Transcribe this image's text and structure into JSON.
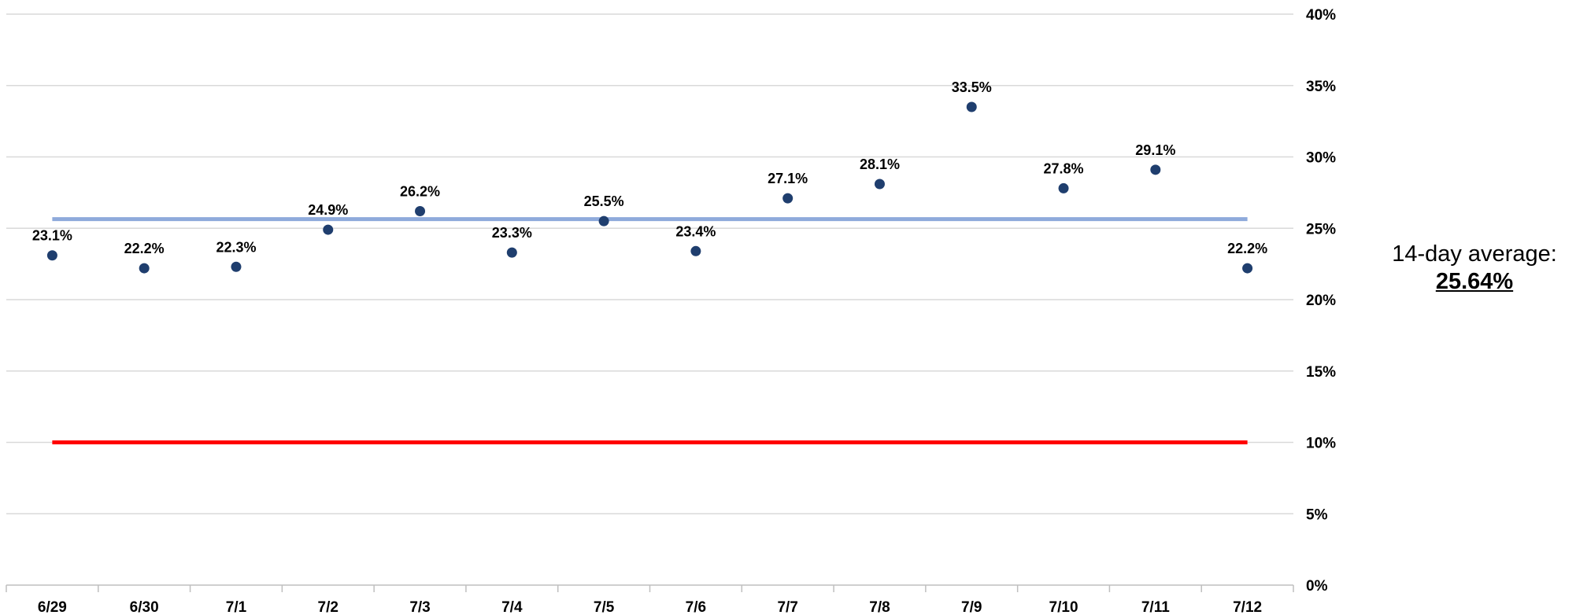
{
  "average": {
    "label": "14-day average:",
    "value": "25.64%"
  },
  "chart_data": {
    "type": "scatter",
    "title": "",
    "xlabel": "",
    "ylabel": "",
    "categories": [
      "6/29",
      "6/30",
      "7/1",
      "7/2",
      "7/3",
      "7/4",
      "7/5",
      "7/6",
      "7/7",
      "7/8",
      "7/9",
      "7/10",
      "7/11",
      "7/12"
    ],
    "series": [
      {
        "values": [
          23.1,
          22.2,
          22.3,
          24.9,
          26.2,
          23.3,
          25.5,
          23.4,
          27.1,
          28.1,
          33.5,
          27.8,
          29.1,
          22.2
        ],
        "data_labels": [
          "23.1%",
          "22.2%",
          "22.3%",
          "24.9%",
          "26.2%",
          "23.3%",
          "25.5%",
          "23.4%",
          "27.1%",
          "28.1%",
          "33.5%",
          "27.8%",
          "29.1%",
          "22.2%"
        ],
        "color": "#1f3e6e"
      }
    ],
    "reference_lines": [
      {
        "value": 25.64,
        "color": "#8eaadb"
      },
      {
        "value": 10,
        "color": "#ff0000"
      }
    ],
    "ylim": [
      0,
      40
    ],
    "y_ticks": [
      0,
      5,
      10,
      15,
      20,
      25,
      30,
      35,
      40
    ],
    "y_tick_labels": [
      "0%",
      "5%",
      "10%",
      "15%",
      "20%",
      "25%",
      "30%",
      "35%",
      "40%"
    ],
    "y_axis_position": "right",
    "grid": true,
    "legend": "none"
  }
}
